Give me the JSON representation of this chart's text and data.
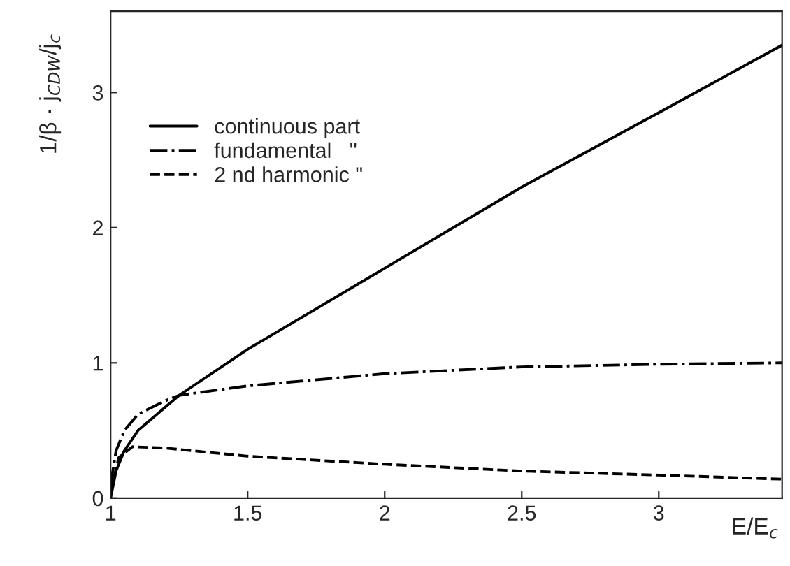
{
  "chart_data": {
    "type": "line",
    "xlabel": "E/E$_{c}$",
    "ylabel": "1/β · j$_{CDW}$/j$_{c}$",
    "xlim": [
      1,
      3.45
    ],
    "ylim": [
      0,
      3.6
    ],
    "xticks": [
      1,
      1.5,
      2,
      2.5,
      3
    ],
    "yticks": [
      0,
      1,
      2,
      3
    ],
    "grid": false,
    "legend": "top left",
    "series": [
      {
        "name": "continuous part",
        "color": "#000000",
        "line_style": "solid",
        "x": [
          1,
          1.02,
          1.05,
          1.1,
          1.25,
          1.5,
          2,
          2.5,
          3,
          3.45
        ],
        "values": [
          0,
          0.2,
          0.35,
          0.5,
          0.76,
          1.1,
          1.7,
          2.3,
          2.85,
          3.35
        ]
      },
      {
        "name": "fundamental   \"",
        "color": "#000000",
        "line_style": "dashdot",
        "x": [
          1,
          1.02,
          1.05,
          1.1,
          1.2,
          1.25,
          1.5,
          2,
          2.5,
          3,
          3.45
        ],
        "values": [
          0.1,
          0.35,
          0.5,
          0.62,
          0.72,
          0.76,
          0.83,
          0.92,
          0.97,
          0.99,
          1.0
        ]
      },
      {
        "name": "2 nd harmonic \"",
        "color": "#000000",
        "line_style": "dashed",
        "x": [
          1,
          1.03,
          1.08,
          1.2,
          1.5,
          2,
          2.5,
          3,
          3.45
        ],
        "values": [
          0.05,
          0.3,
          0.38,
          0.37,
          0.31,
          0.25,
          0.2,
          0.17,
          0.14
        ]
      }
    ]
  }
}
